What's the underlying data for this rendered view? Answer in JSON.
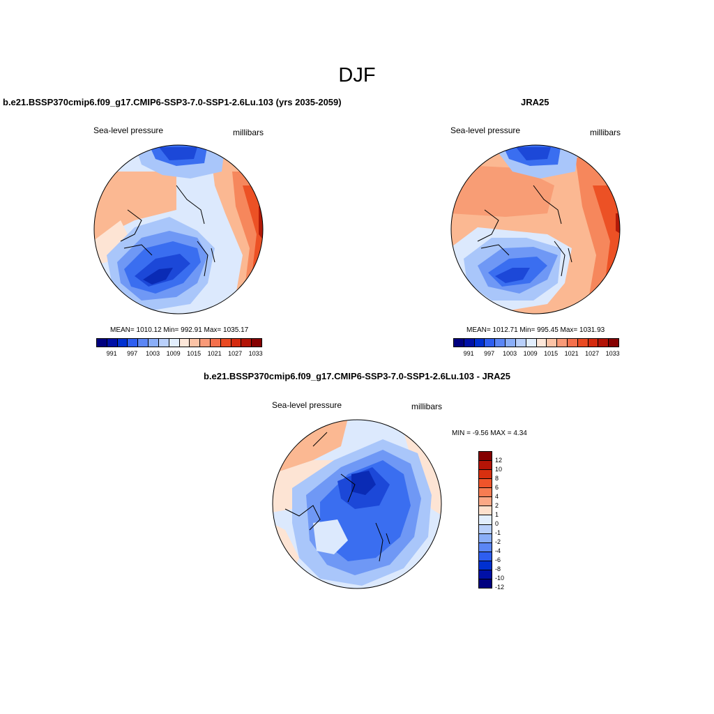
{
  "figure": {
    "title": "DJF",
    "panels": [
      {
        "title": "b.e21.BSSP370cmip6.f09_g17.CMIP6-SSP3-7.0-SSP1-2.6Lu.103 (yrs 2035-2059)",
        "field": "Sea-level pressure",
        "units": "millibars",
        "stats": "MEAN= 1010.12  Min= 992.91  Max= 1035.17"
      },
      {
        "title": "JRA25",
        "field": "Sea-level pressure",
        "units": "millibars",
        "stats": "MEAN= 1012.71  Min= 995.45  Max= 1031.93"
      },
      {
        "title": "b.e21.BSSP370cmip6.f09_g17.CMIP6-SSP3-7.0-SSP1-2.6Lu.103 - JRA25",
        "field": "Sea-level pressure",
        "units": "millibars",
        "stats": "MIN =  -9.56 MAX =   4.34"
      }
    ]
  },
  "colorbar_abs": {
    "colors": [
      "#00007f",
      "#0010a6",
      "#0030d0",
      "#2e5ef0",
      "#5b86f5",
      "#8aaef8",
      "#b9d0fb",
      "#e2eefd",
      "#fde7d9",
      "#fcc3a6",
      "#f99a78",
      "#f4704c",
      "#ea4a22",
      "#d42a0e",
      "#b21306",
      "#850000"
    ],
    "labels": [
      "991",
      "997",
      "1003",
      "1009",
      "1015",
      "1021",
      "1027",
      "1033"
    ]
  },
  "colorbar_diff": {
    "colors": [
      "#850000",
      "#b41406",
      "#d8300f",
      "#f0542a",
      "#f77c52",
      "#fba886",
      "#fde0cd",
      "#e2eefd",
      "#b9d0fb",
      "#8aaef8",
      "#5b86f5",
      "#2e5ef0",
      "#0030d0",
      "#0010a6",
      "#00007f"
    ],
    "labels": [
      "12",
      "10",
      "8",
      "6",
      "4",
      "2",
      "1",
      "0",
      "-1",
      "-2",
      "-4",
      "-6",
      "-8",
      "-10",
      "-12"
    ]
  },
  "map_colors": {
    "deep_blue": "#1c48d8",
    "blue": "#3a6ef0",
    "mid_blue": "#6f98f5",
    "light_blue": "#a9c6fa",
    "pale_blue": "#dce9fd",
    "pale_orange": "#fde4d4",
    "light_orange": "#fbb892",
    "orange": "#f6875c",
    "red_orange": "#ec5125",
    "dark_red": "#b31a08",
    "deepest_blue": "#0a2bb5"
  }
}
